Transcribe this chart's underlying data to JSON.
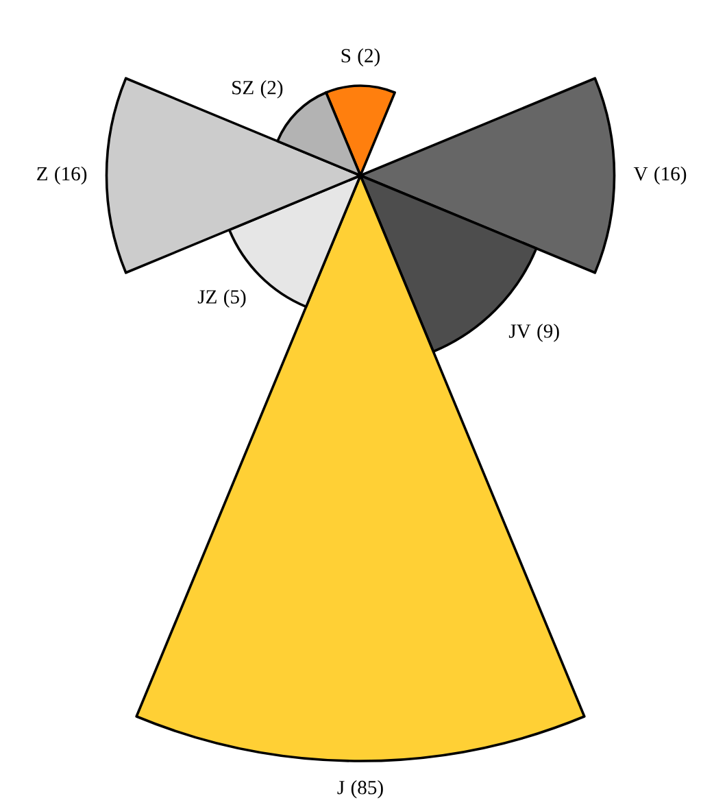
{
  "chart_data": {
    "type": "other",
    "categories": [
      "S",
      null,
      "V",
      "JV",
      "J",
      "JZ",
      "Z",
      "SZ"
    ],
    "values": [
      2,
      null,
      16,
      9,
      85,
      5,
      16,
      2
    ],
    "value_labels": [
      "(2)",
      null,
      "(16)",
      "(9)",
      "(85)",
      "(5)",
      "(16)",
      "(2)"
    ],
    "colors": [
      "#ff7f0e",
      "#999999",
      "#666666",
      "#4d4d4d",
      "#ffd035",
      "#e6e6e6",
      "#cccccc",
      "#b3b3b3"
    ]
  }
}
